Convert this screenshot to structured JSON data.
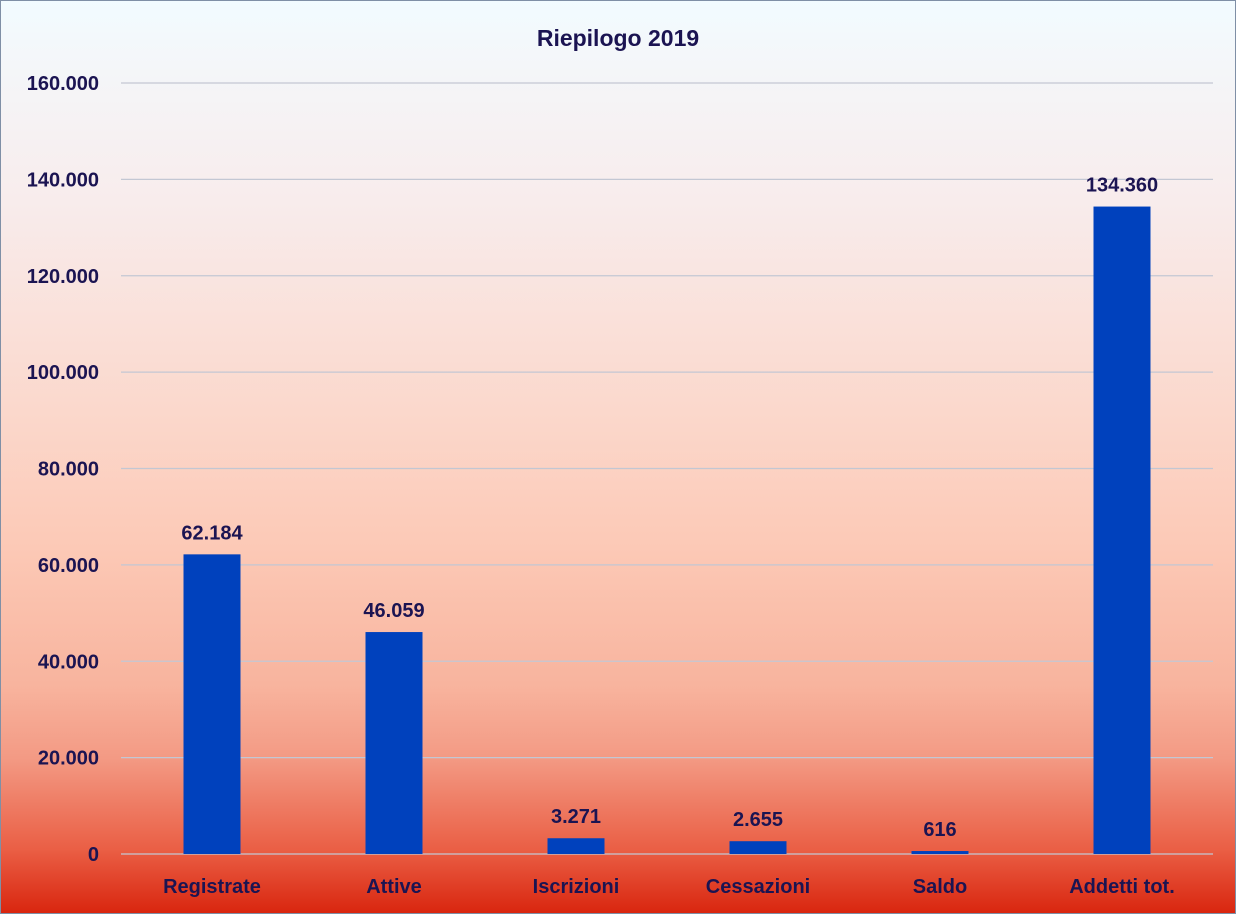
{
  "chart_data": {
    "type": "bar",
    "title": "Riepilogo 2019",
    "categories": [
      "Registrate",
      "Attive",
      "Iscrizioni",
      "Cessazioni",
      "Saldo",
      "Addetti tot."
    ],
    "values": [
      62184,
      46059,
      3271,
      2655,
      616,
      134360
    ],
    "value_labels": [
      "62.184",
      "46.059",
      "3.271",
      "2.655",
      "616",
      "134.360"
    ],
    "ylim": [
      0,
      160000
    ],
    "yticks": [
      0,
      20000,
      40000,
      60000,
      80000,
      100000,
      120000,
      140000,
      160000
    ],
    "ytick_labels": [
      "0",
      "20.000",
      "40.000",
      "60.000",
      "80.000",
      "100.000",
      "120.000",
      "140.000",
      "160.000"
    ],
    "xlabel": "",
    "ylabel": "",
    "grid": true,
    "legend": "none",
    "bar_color": "#0041bd",
    "text_color": "#1b1452"
  }
}
